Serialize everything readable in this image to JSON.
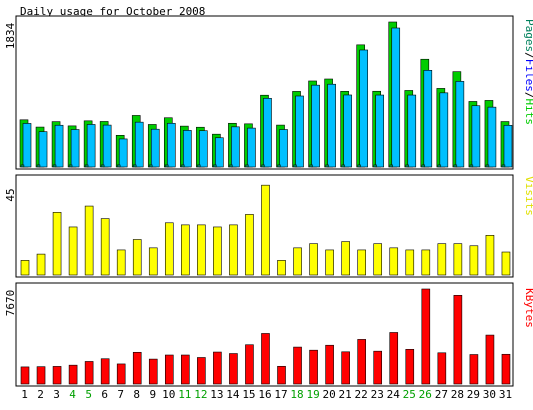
{
  "chart_data": {
    "title": "Daily usage for October 2008",
    "type": "bar",
    "days": [
      "1",
      "2",
      "3",
      "4",
      "5",
      "6",
      "7",
      "8",
      "9",
      "10",
      "11",
      "12",
      "13",
      "14",
      "15",
      "16",
      "17",
      "18",
      "19",
      "20",
      "21",
      "22",
      "23",
      "24",
      "25",
      "26",
      "27",
      "28",
      "29",
      "30",
      "31"
    ],
    "weekend_days": [
      "4",
      "5",
      "11",
      "12",
      "18",
      "19",
      "25",
      "26"
    ],
    "colors": {
      "pages": "#00cc00",
      "files": "#00c0ff",
      "hits": "#00805c",
      "visits": "#ffff00",
      "kbytes": "#ff0000",
      "weekend_label": "#00a000",
      "weekday_label": "#000000"
    },
    "panels": [
      {
        "key": "hits_files",
        "max_label": "1834",
        "ymax": 1834,
        "legend": [
          {
            "text": "Pages",
            "color": "#00805c"
          },
          {
            "text": "/",
            "color": "#000000"
          },
          {
            "text": "Files",
            "color": "#0000ff"
          },
          {
            "text": "/",
            "color": "#000000"
          },
          {
            "text": "Hits",
            "color": "#00cc00"
          }
        ],
        "series": [
          {
            "name": "Hits",
            "values": [
              597,
              505,
              574,
              520,
              584,
              576,
              401,
              652,
              538,
              623,
              517,
              503,
              415,
              553,
              546,
              908,
              530,
              956,
              1088,
              1113,
              957,
              1545,
              958,
              1834,
              968,
              1363,
              994,
              1206,
              829,
              842,
              575
            ]
          },
          {
            "name": "Files",
            "values": [
              551,
              447,
              528,
              474,
              538,
              530,
              355,
              567,
              478,
              553,
              463,
              459,
              370,
              508,
              492,
              869,
              474,
              898,
              1035,
              1047,
              911,
              1480,
              910,
              1758,
              910,
              1223,
              938,
              1083,
              775,
              757,
              527
            ]
          },
          {
            "name": "Pages",
            "values": [
              27,
              27,
              27,
              27,
              27,
              27,
              27,
              27,
              27,
              27,
              27,
              27,
              27,
              27,
              27,
              27,
              27,
              27,
              27,
              27,
              27,
              27,
              27,
              27,
              27,
              27,
              27,
              27,
              27,
              27,
              27
            ]
          }
        ]
      },
      {
        "key": "visits",
        "max_label": "45",
        "ymax": 45,
        "legend": [
          {
            "text": "Visits",
            "color": "#e0e000"
          }
        ],
        "series": [
          {
            "name": "Visits",
            "values": [
              7,
              10,
              30,
              23,
              33,
              27,
              12,
              17,
              13,
              25,
              24,
              24,
              23,
              24,
              29,
              43,
              7,
              13,
              15,
              12,
              16,
              12,
              15,
              13,
              12,
              12,
              15,
              15,
              14,
              19,
              11
            ]
          }
        ]
      },
      {
        "key": "kbytes",
        "max_label": "7670",
        "ymax": 7670,
        "legend": [
          {
            "text": "KBytes",
            "color": "#ff0000"
          }
        ],
        "series": [
          {
            "name": "KBytes",
            "values": [
              1380,
              1400,
              1420,
              1520,
              1820,
              2040,
              1620,
              2560,
              2010,
              2340,
              2340,
              2140,
              2580,
              2460,
              3170,
              4080,
              1430,
              2980,
              2730,
              3130,
              2600,
              3600,
              2650,
              4160,
              2800,
              7670,
              2520,
              7160,
              2380,
              3950,
              2400
            ]
          }
        ]
      }
    ]
  }
}
